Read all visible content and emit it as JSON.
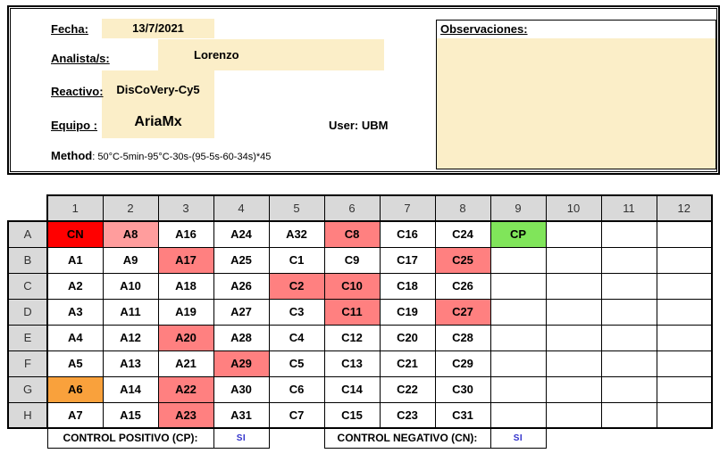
{
  "header_form": {
    "fecha": {
      "label": "Fecha:",
      "value": "13/7/2021"
    },
    "analista": {
      "label": "Analista/s:",
      "value": "Lorenzo"
    },
    "reactivo": {
      "label": "Reactivo:",
      "value": "DisCoVery-Cy5"
    },
    "equipo": {
      "label": "Equipo :",
      "value": "AriaMx"
    },
    "user": {
      "label": "User",
      "value": ": UBM"
    },
    "method": {
      "label": "Method",
      "value": ": 50°C-5min-95°C-30s-(95-5s-60-34s)*45"
    },
    "observaciones": {
      "label": "Observaciones:",
      "value": ""
    }
  },
  "plate": {
    "column_headers": [
      "1",
      "2",
      "3",
      "4",
      "5",
      "6",
      "7",
      "8",
      "9",
      "10",
      "11",
      "12"
    ],
    "row_headers": [
      "A",
      "B",
      "C",
      "D",
      "E",
      "F",
      "G",
      "H"
    ],
    "rows": [
      [
        {
          "label": "CN",
          "fill": "red"
        },
        {
          "label": "A8",
          "fill": "pink_light"
        },
        {
          "label": "A16"
        },
        {
          "label": "A24"
        },
        {
          "label": "A32"
        },
        {
          "label": "C8",
          "fill": "pink"
        },
        {
          "label": "C16"
        },
        {
          "label": "C24"
        },
        {
          "label": "CP",
          "fill": "green"
        },
        {
          "label": ""
        },
        {
          "label": ""
        },
        {
          "label": ""
        }
      ],
      [
        {
          "label": "A1"
        },
        {
          "label": "A9"
        },
        {
          "label": "A17",
          "fill": "pink"
        },
        {
          "label": "A25"
        },
        {
          "label": "C1"
        },
        {
          "label": "C9"
        },
        {
          "label": "C17"
        },
        {
          "label": "C25",
          "fill": "pink"
        },
        {
          "label": ""
        },
        {
          "label": ""
        },
        {
          "label": ""
        },
        {
          "label": ""
        }
      ],
      [
        {
          "label": "A2"
        },
        {
          "label": "A10"
        },
        {
          "label": "A18"
        },
        {
          "label": "A26"
        },
        {
          "label": "C2",
          "fill": "pink"
        },
        {
          "label": "C10",
          "fill": "pink"
        },
        {
          "label": "C18"
        },
        {
          "label": "C26"
        },
        {
          "label": ""
        },
        {
          "label": ""
        },
        {
          "label": ""
        },
        {
          "label": ""
        }
      ],
      [
        {
          "label": "A3"
        },
        {
          "label": "A11"
        },
        {
          "label": "A19"
        },
        {
          "label": "A27"
        },
        {
          "label": "C3"
        },
        {
          "label": "C11",
          "fill": "pink"
        },
        {
          "label": "C19"
        },
        {
          "label": "C27",
          "fill": "pink"
        },
        {
          "label": ""
        },
        {
          "label": ""
        },
        {
          "label": ""
        },
        {
          "label": ""
        }
      ],
      [
        {
          "label": "A4"
        },
        {
          "label": "A12"
        },
        {
          "label": "A20",
          "fill": "pink"
        },
        {
          "label": "A28"
        },
        {
          "label": "C4"
        },
        {
          "label": "C12"
        },
        {
          "label": "C20"
        },
        {
          "label": "C28"
        },
        {
          "label": ""
        },
        {
          "label": ""
        },
        {
          "label": ""
        },
        {
          "label": ""
        }
      ],
      [
        {
          "label": "A5"
        },
        {
          "label": "A13"
        },
        {
          "label": "A21"
        },
        {
          "label": "A29",
          "fill": "pink"
        },
        {
          "label": "C5"
        },
        {
          "label": "C13"
        },
        {
          "label": "C21"
        },
        {
          "label": "C29"
        },
        {
          "label": ""
        },
        {
          "label": ""
        },
        {
          "label": ""
        },
        {
          "label": ""
        }
      ],
      [
        {
          "label": "A6",
          "fill": "orange"
        },
        {
          "label": "A14"
        },
        {
          "label": "A22",
          "fill": "pink"
        },
        {
          "label": "A30"
        },
        {
          "label": "C6"
        },
        {
          "label": "C14"
        },
        {
          "label": "C22"
        },
        {
          "label": "C30"
        },
        {
          "label": ""
        },
        {
          "label": ""
        },
        {
          "label": ""
        },
        {
          "label": ""
        }
      ],
      [
        {
          "label": "A7"
        },
        {
          "label": "A15"
        },
        {
          "label": "A23",
          "fill": "pink"
        },
        {
          "label": "A31"
        },
        {
          "label": "C7"
        },
        {
          "label": "C15"
        },
        {
          "label": "C23"
        },
        {
          "label": "C31"
        },
        {
          "label": ""
        },
        {
          "label": ""
        },
        {
          "label": ""
        },
        {
          "label": ""
        }
      ]
    ]
  },
  "controls_footer": {
    "positive_label": "CONTROL POSITIVO (CP):",
    "positive_value": "SI",
    "negative_label": "CONTROL NEGATIVO (CN):",
    "negative_value": "SI"
  },
  "colors": {
    "red": "#FF0000",
    "pink": "#FF8080",
    "pink_light": "#FF9D9D",
    "orange": "#F9A13C",
    "green": "#80E55A",
    "header_gray": "#D9D9D9",
    "field_beige": "#FBEEC8",
    "si_blue": "#3333CC"
  }
}
